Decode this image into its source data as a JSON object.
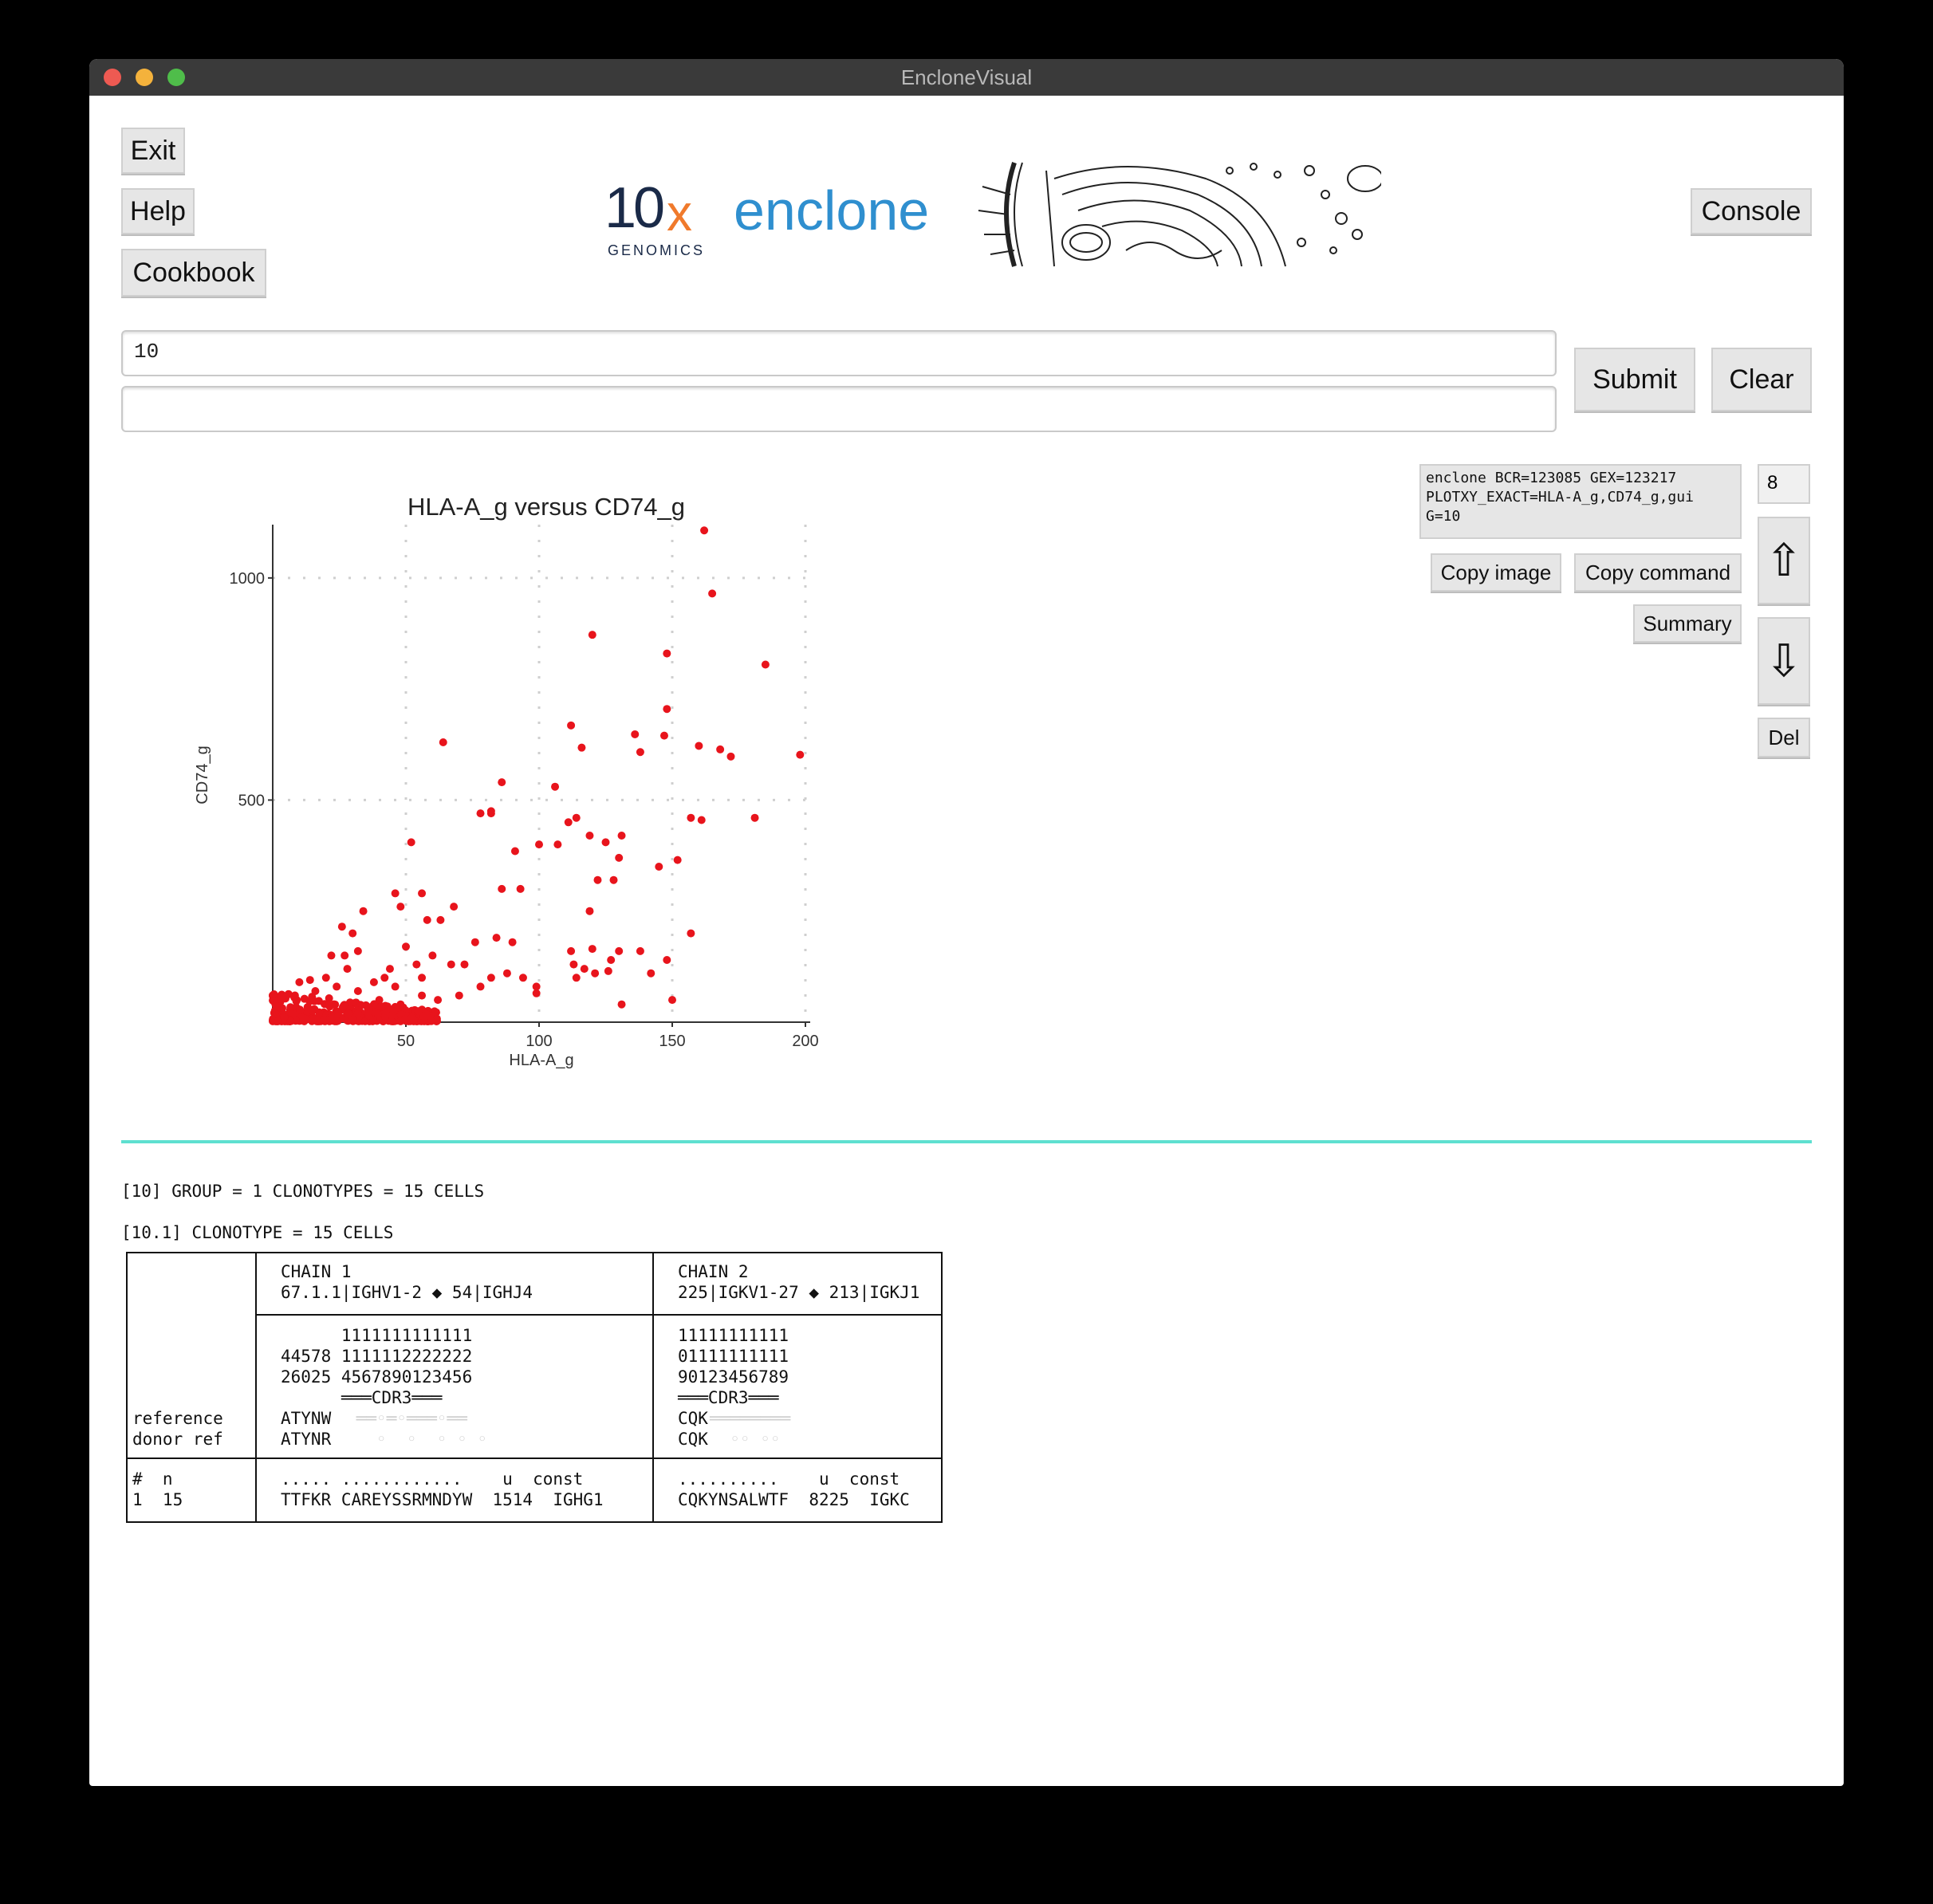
{
  "window": {
    "title": "EncloneVisual"
  },
  "buttons": {
    "exit": "Exit",
    "help": "Help",
    "cookbook": "Cookbook",
    "console": "Console",
    "submit": "Submit",
    "clear": "Clear",
    "copy_image": "Copy image",
    "copy_command": "Copy command",
    "summary": "Summary",
    "del": "Del",
    "up_arrow": "⇧",
    "down_arrow": "⇩"
  },
  "logo": {
    "ten": "10",
    "x": "x",
    "genomics": "GENOMICS",
    "enclone": "enclone"
  },
  "inputs": {
    "command_value": "10",
    "second_value": ""
  },
  "history": {
    "command_lines": [
      "enclone BCR=123085 GEX=123217",
      "PLOTXY_EXACT=HLA-A_g,CD74_g,gui",
      "G=10"
    ],
    "index": "8"
  },
  "chart_data": {
    "type": "scatter",
    "title": "HLA-A_g versus CD74_g",
    "xlabel": "HLA-A_g",
    "ylabel": "CD74_g",
    "xlim": [
      0,
      200
    ],
    "ylim": [
      0,
      1120
    ],
    "xticks": [
      50,
      100,
      150,
      200
    ],
    "yticks": [
      500,
      1000
    ],
    "grid": true,
    "color": "#e8141c",
    "points": [
      [
        162,
        1107
      ],
      [
        165,
        965
      ],
      [
        120,
        872
      ],
      [
        185,
        805
      ],
      [
        148,
        830
      ],
      [
        148,
        705
      ],
      [
        147,
        645
      ],
      [
        112,
        668
      ],
      [
        116,
        618
      ],
      [
        160,
        622
      ],
      [
        168,
        614
      ],
      [
        172,
        598
      ],
      [
        198,
        602
      ],
      [
        64,
        630
      ],
      [
        86,
        540
      ],
      [
        106,
        530
      ],
      [
        136,
        648
      ],
      [
        138,
        608
      ],
      [
        78,
        470
      ],
      [
        82,
        470
      ],
      [
        82,
        475
      ],
      [
        91,
        385
      ],
      [
        100,
        400
      ],
      [
        107,
        400
      ],
      [
        111,
        450
      ],
      [
        114,
        460
      ],
      [
        119,
        420
      ],
      [
        125,
        405
      ],
      [
        131,
        420
      ],
      [
        130,
        370
      ],
      [
        122,
        320
      ],
      [
        128,
        320
      ],
      [
        145,
        350
      ],
      [
        152,
        365
      ],
      [
        157,
        460
      ],
      [
        161,
        455
      ],
      [
        181,
        460
      ],
      [
        52,
        405
      ],
      [
        56,
        290
      ],
      [
        46,
        290
      ],
      [
        48,
        260
      ],
      [
        86,
        300
      ],
      [
        93,
        300
      ],
      [
        68,
        260
      ],
      [
        58,
        230
      ],
      [
        63,
        230
      ],
      [
        34,
        250
      ],
      [
        30,
        200
      ],
      [
        26,
        215
      ],
      [
        22,
        150
      ],
      [
        27,
        150
      ],
      [
        32,
        160
      ],
      [
        84,
        190
      ],
      [
        90,
        180
      ],
      [
        76,
        180
      ],
      [
        72,
        130
      ],
      [
        67,
        130
      ],
      [
        60,
        150
      ],
      [
        50,
        170
      ],
      [
        54,
        130
      ],
      [
        56,
        100
      ],
      [
        44,
        120
      ],
      [
        38,
        90
      ],
      [
        42,
        100
      ],
      [
        46,
        80
      ],
      [
        28,
        120
      ],
      [
        20,
        100
      ],
      [
        14,
        95
      ],
      [
        10,
        90
      ],
      [
        16,
        70
      ],
      [
        24,
        80
      ],
      [
        32,
        70
      ],
      [
        40,
        50
      ],
      [
        48,
        40
      ],
      [
        56,
        60
      ],
      [
        62,
        50
      ],
      [
        70,
        60
      ],
      [
        78,
        80
      ],
      [
        82,
        100
      ],
      [
        88,
        110
      ],
      [
        94,
        100
      ],
      [
        99,
        80
      ],
      [
        99,
        65
      ],
      [
        112,
        160
      ],
      [
        113,
        130
      ],
      [
        117,
        120
      ],
      [
        120,
        165
      ],
      [
        121,
        110
      ],
      [
        130,
        160
      ],
      [
        138,
        160
      ],
      [
        127,
        140
      ],
      [
        126,
        115
      ],
      [
        148,
        140
      ],
      [
        142,
        110
      ],
      [
        157,
        200
      ],
      [
        131,
        40
      ],
      [
        150,
        50
      ],
      [
        119,
        250
      ],
      [
        114,
        100
      ]
    ]
  },
  "clonotype": {
    "group_line": "[10] GROUP = 1 CLONOTYPES = 15 CELLS",
    "clonotype_line": "[10.1] CLONOTYPE = 15 CELLS",
    "chain1_header": "CHAIN 1",
    "chain1_genes": "67.1.1|IGHV1-2 ◆ 54|IGHJ4",
    "chain2_header": "CHAIN 2",
    "chain2_genes": "225|IGKV1-27 ◆ 213|IGKJ1",
    "chain1_pos_row1": "      1111111111111",
    "chain1_pos_row2": "44578 1111112222222",
    "chain1_pos_row3": "26025 4567890123456",
    "chain1_cdr3": "      ═══CDR3═══",
    "chain1_ref": "ATYNW",
    "chain1_ref_dots": " ══◦═◦═══◦══",
    "chain1_donor": "ATYNR",
    "chain1_donor_dots": "   ◦  ◦  ◦ ◦ ◦",
    "chain2_pos_row1": "11111111111",
    "chain2_pos_row2": "01111111111",
    "chain2_pos_row3": "90123456789",
    "chain2_cdr3": "═══CDR3═══",
    "chain2_ref": "CQK",
    "chain2_ref_dots": "════════",
    "chain2_donor": "CQK",
    "chain2_donor_dots": "  ◦◦ ◦◦",
    "label_reference": "reference",
    "label_donor_ref": "donor ref",
    "row_header_left": "#  n",
    "row_values_left": "1  15",
    "chain1_row_header": "..... ............    u  const",
    "chain1_row_values": "TTFKR CAREYSSRMNDYW  1514  IGHG1",
    "chain2_row_header": "..........    u  const",
    "chain2_row_values": "CQKYNSALWTF  8225  IGKC"
  }
}
